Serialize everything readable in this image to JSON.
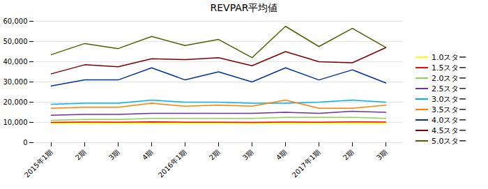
{
  "chart_data": {
    "type": "line",
    "title": "REVPAR平均値",
    "categories": [
      "2015年1期",
      "2期",
      "3期",
      "4期",
      "2016年1期",
      "2期",
      "3期",
      "4期",
      "2017年1期",
      "2期",
      "3期"
    ],
    "series": [
      {
        "name": "1.0スター",
        "color": "#FFFF00",
        "values": [
          9500,
          9600,
          9500,
          9600,
          9500,
          9500,
          9500,
          9500,
          9500,
          9600,
          9600
        ]
      },
      {
        "name": "1.5スター",
        "color": "#FF0000",
        "values": [
          10000,
          10200,
          10100,
          10300,
          10100,
          10100,
          10000,
          10200,
          10100,
          10300,
          10200
        ]
      },
      {
        "name": "2.0スター",
        "color": "#92D050",
        "values": [
          11000,
          11500,
          11500,
          12000,
          12000,
          12000,
          12000,
          12500,
          12500,
          12500,
          12000
        ]
      },
      {
        "name": "2.5スター",
        "color": "#7030A0",
        "values": [
          13500,
          14000,
          14000,
          14500,
          14500,
          14500,
          14500,
          15000,
          14500,
          15500,
          15000
        ]
      },
      {
        "name": "3.0スター",
        "color": "#00B0F0",
        "values": [
          19000,
          19500,
          19500,
          21000,
          20000,
          20000,
          19500,
          19500,
          20000,
          21000,
          20000
        ]
      },
      {
        "name": "3.5スター",
        "color": "#FF8000",
        "values": [
          17000,
          17500,
          17500,
          19500,
          18000,
          18500,
          18000,
          21000,
          17000,
          17000,
          18500
        ]
      },
      {
        "name": "4.0スター",
        "color": "#003399",
        "values": [
          28000,
          31000,
          31000,
          37000,
          31000,
          35000,
          30000,
          37000,
          31000,
          36000,
          29500
        ]
      },
      {
        "name": "4.5スター",
        "color": "#7B0000",
        "values": [
          34000,
          38500,
          37500,
          41500,
          41000,
          42000,
          38000,
          45000,
          40000,
          39500,
          47000
        ]
      },
      {
        "name": "5.0スター",
        "color": "#4E6000",
        "values": [
          43500,
          49000,
          46500,
          52500,
          48000,
          51000,
          42000,
          57500,
          47500,
          56500,
          47000
        ]
      }
    ],
    "ylim": [
      0,
      60000
    ],
    "yticks": [
      0,
      {
        "value": 10000,
        "label": "10,000"
      },
      {
        "value": 20000,
        "label": "20,000"
      },
      {
        "value": 30000,
        "label": "30,000"
      },
      {
        "value": 40000,
        "label": "40,000"
      },
      {
        "value": 50000,
        "label": "50,000"
      },
      {
        "value": 60000,
        "label": "60,000"
      }
    ],
    "grid": true,
    "legend": "right"
  }
}
